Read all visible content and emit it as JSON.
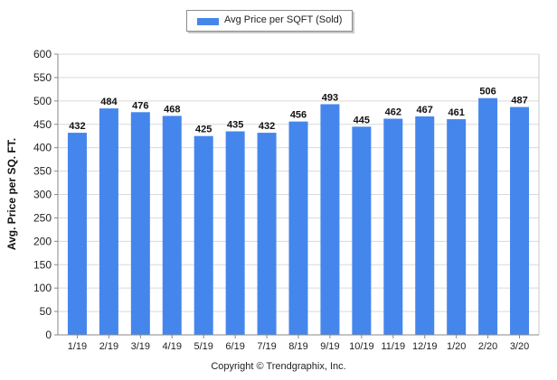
{
  "chart_data": {
    "type": "bar",
    "categories": [
      "1/19",
      "2/19",
      "3/19",
      "4/19",
      "5/19",
      "6/19",
      "7/19",
      "8/19",
      "9/19",
      "10/19",
      "11/19",
      "12/19",
      "1/20",
      "2/20",
      "3/20"
    ],
    "series": [
      {
        "name": "Avg Price per SQFT (Sold)",
        "values": [
          432,
          484,
          476,
          468,
          425,
          435,
          432,
          456,
          493,
          445,
          462,
          467,
          461,
          506,
          487
        ]
      }
    ],
    "data_labels": [
      "432",
      "484",
      "476",
      "468",
      "425",
      "435",
      "432",
      "456",
      "493",
      "445",
      "462",
      "467",
      "461",
      "506",
      "487"
    ],
    "ylabel": "Avg. Price per SQ. FT.",
    "xlabel": "",
    "ylim": [
      0,
      600
    ],
    "yticks": [
      "0",
      "50",
      "100",
      "150",
      "200",
      "250",
      "300",
      "350",
      "400",
      "450",
      "500",
      "550",
      "600"
    ],
    "grid": true,
    "legend_position": "top-center",
    "bar_color": "#4586ed",
    "grid_color": "#d9d9d9"
  },
  "footer": {
    "copyright": "Copyright © Trendgraphix, Inc."
  }
}
